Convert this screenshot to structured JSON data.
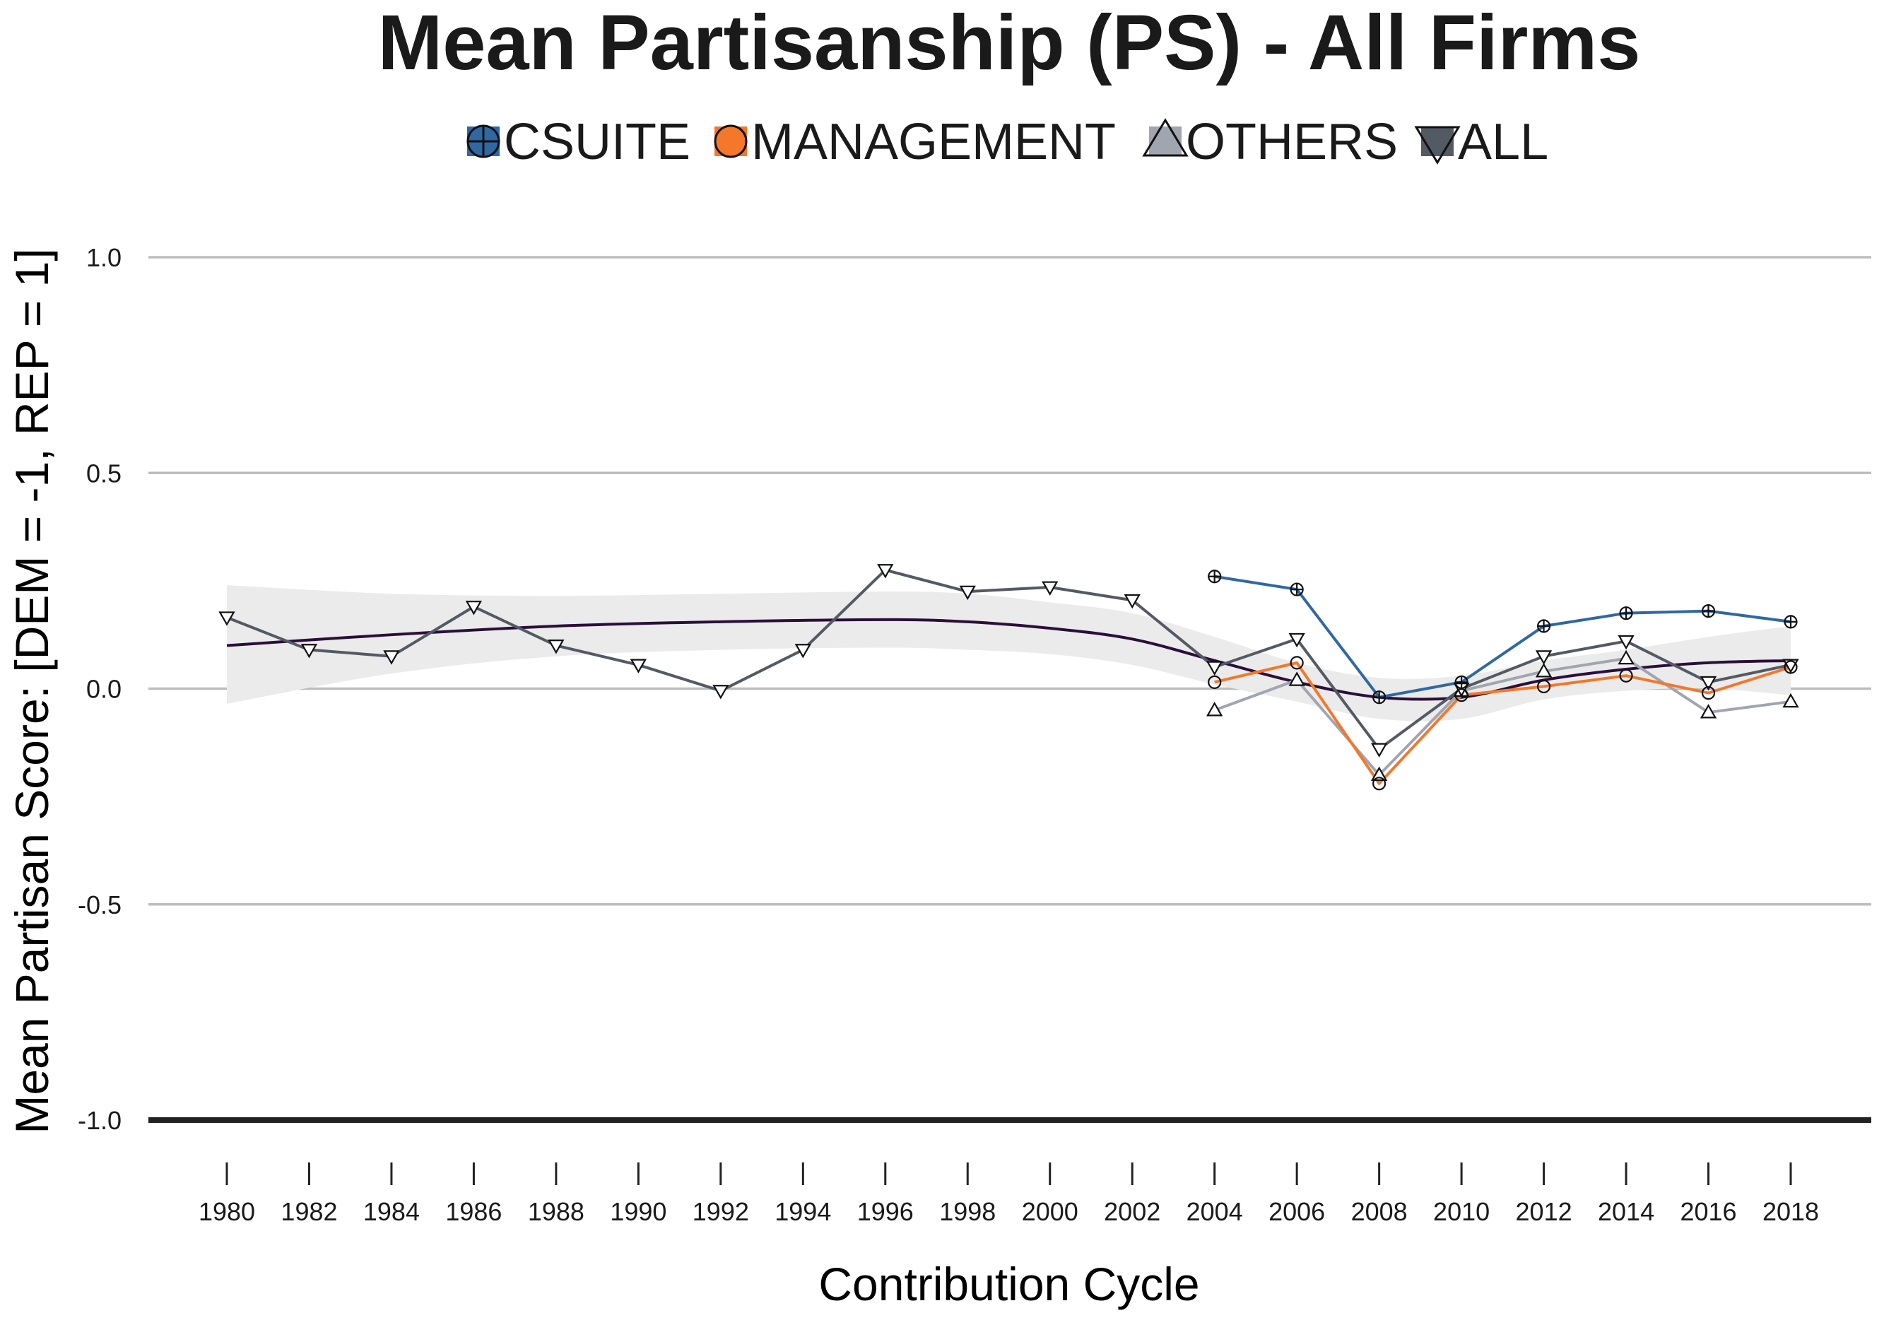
{
  "chart_data": {
    "type": "line",
    "title": "Mean Partisanship (PS) - All Firms",
    "xlabel": "Contribution Cycle",
    "ylabel": "Mean Partisan Score: [DEM = -1, REP = 1]",
    "ylim": [
      -1.0,
      1.0
    ],
    "y_ticks": [
      1.0,
      0.5,
      0.0,
      -0.5,
      -1.0
    ],
    "y_tick_labels": [
      "1.0",
      "0.5",
      "0.0",
      "-0.5",
      "-1.0"
    ],
    "x_ticks": [
      "1980",
      "1982",
      "1984",
      "1986",
      "1988",
      "1990",
      "1992",
      "1994",
      "1996",
      "1998",
      "2000",
      "2002",
      "2004",
      "2006",
      "2008",
      "2010",
      "2012",
      "2014",
      "2016",
      "2018"
    ],
    "grid": "horizontal",
    "legend_position": "top",
    "series": [
      {
        "name": "CSUITE",
        "color": "#2f68a3",
        "marker": "circle-plus",
        "x": [
          2004,
          2006,
          2008,
          2010,
          2012,
          2014,
          2016,
          2018
        ],
        "values": [
          0.26,
          0.23,
          -0.02,
          0.015,
          0.145,
          0.175,
          0.18,
          0.155
        ]
      },
      {
        "name": "MANAGEMENT",
        "color": "#f4772a",
        "marker": "circle",
        "x": [
          2004,
          2006,
          2008,
          2010,
          2012,
          2014,
          2016,
          2018
        ],
        "values": [
          0.015,
          0.06,
          -0.22,
          -0.015,
          0.005,
          0.03,
          -0.01,
          0.05
        ]
      },
      {
        "name": "OTHERS",
        "color": "#a0a5b0",
        "marker": "triangle-up",
        "x": [
          2004,
          2006,
          2008,
          2010,
          2012,
          2014,
          2016,
          2018
        ],
        "values": [
          -0.05,
          0.02,
          -0.2,
          -0.005,
          0.04,
          0.07,
          -0.055,
          -0.03
        ]
      },
      {
        "name": "ALL",
        "color": "#535a64",
        "marker": "triangle-down",
        "x": [
          1980,
          1982,
          1984,
          1986,
          1988,
          1990,
          1992,
          1994,
          1996,
          1998,
          2000,
          2002,
          2004,
          2006,
          2008,
          2010,
          2012,
          2014,
          2016,
          2018
        ],
        "values": [
          0.165,
          0.09,
          0.075,
          0.19,
          0.1,
          0.055,
          -0.005,
          0.09,
          0.275,
          0.225,
          0.235,
          0.205,
          0.05,
          0.115,
          -0.14,
          0.0,
          0.075,
          0.11,
          0.015,
          0.055
        ]
      }
    ],
    "trend": {
      "color": "#2b0f3a",
      "band_color": "#ebebeb",
      "x": [
        1980,
        1984,
        1988,
        1992,
        1996,
        1998,
        2000,
        2002,
        2004,
        2006,
        2008,
        2010,
        2012,
        2014,
        2016,
        2018
      ],
      "values": [
        0.1,
        0.125,
        0.145,
        0.155,
        0.16,
        0.155,
        0.14,
        0.115,
        0.065,
        0.015,
        -0.02,
        -0.02,
        0.02,
        0.045,
        0.06,
        0.065
      ],
      "band_upper": [
        0.24,
        0.22,
        0.215,
        0.22,
        0.225,
        0.22,
        0.2,
        0.175,
        0.12,
        0.06,
        0.025,
        0.03,
        0.065,
        0.09,
        0.12,
        0.145
      ],
      "band_lower": [
        -0.035,
        0.035,
        0.075,
        0.09,
        0.095,
        0.09,
        0.08,
        0.055,
        0.01,
        -0.03,
        -0.07,
        -0.07,
        -0.025,
        -0.005,
        0.0,
        -0.015
      ]
    }
  }
}
